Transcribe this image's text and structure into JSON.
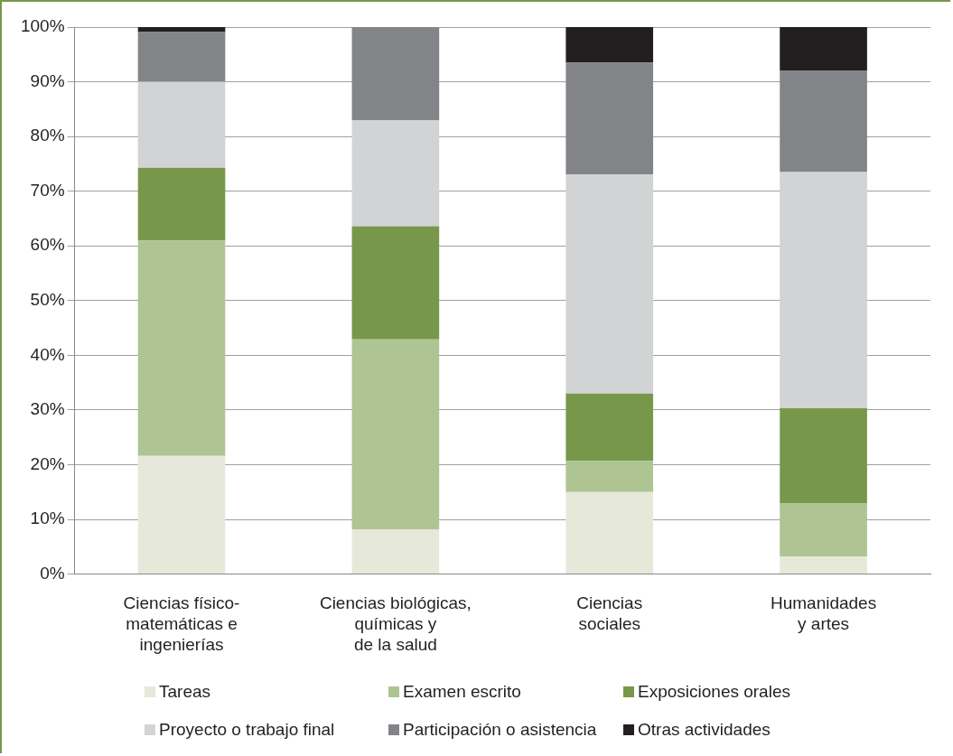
{
  "chart_data": {
    "type": "bar",
    "stacked": true,
    "grid": "y",
    "legend": "bottom",
    "categories": [
      "Ciencias físico-\nmatemáticas e\ningenierías",
      "Ciencias biológicas,\nquímicas y\nde la salud",
      "Ciencias\nsociales",
      "Humanidades\ny artes"
    ],
    "ylim": [
      0,
      100
    ],
    "yticks": [
      {
        "value": 0,
        "label": "0%"
      },
      {
        "value": 10,
        "label": "10%"
      },
      {
        "value": 20,
        "label": "20%"
      },
      {
        "value": 30,
        "label": "30%"
      },
      {
        "value": 40,
        "label": "40%"
      },
      {
        "value": 50,
        "label": "50%"
      },
      {
        "value": 60,
        "label": "60%"
      },
      {
        "value": 70,
        "label": "70%"
      },
      {
        "value": 80,
        "label": "80%"
      },
      {
        "value": 90,
        "label": "90%"
      },
      {
        "value": 100,
        "label": "100%"
      }
    ],
    "series": [
      {
        "name": "Tareas",
        "color": "#e6e8da",
        "values": [
          21.6,
          8.2,
          15.0,
          3.2
        ]
      },
      {
        "name": "Examen escrito",
        "color": "#afc493",
        "values": [
          39.4,
          34.7,
          5.7,
          9.7
        ]
      },
      {
        "name": "Exposiciones orales",
        "color": "#77984b",
        "values": [
          13.3,
          20.7,
          12.3,
          17.4
        ]
      },
      {
        "name": "Proyecto o trabajo final",
        "color": "#d2d3d5",
        "values": [
          15.7,
          19.4,
          40.1,
          43.2
        ]
      },
      {
        "name": "Participación o asistencia",
        "color": "#838487",
        "values": [
          9.1,
          17.0,
          20.4,
          18.5
        ]
      },
      {
        "name": "Otras actividades",
        "color": "#231f20",
        "values": [
          0.9,
          0,
          6.5,
          8.0
        ]
      }
    ]
  }
}
